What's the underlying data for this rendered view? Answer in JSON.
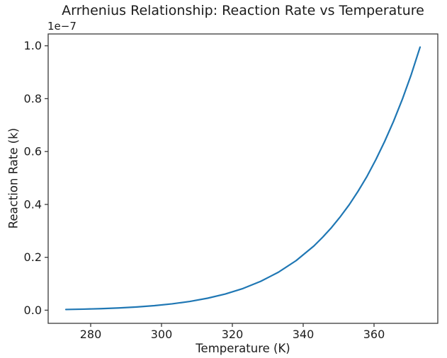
{
  "chart_data": {
    "type": "line",
    "title": "Arrhenius Relationship: Reaction Rate vs Temperature",
    "xlabel": "Temperature (K)",
    "ylabel": "Reaction Rate (k)",
    "y_offset_label": "1e−7",
    "line_color": "#1f77b4",
    "axis_color": "#3a3a3a",
    "grid": false,
    "legend": false,
    "xlim": [
      268,
      378
    ],
    "ylim_1e7": [
      -0.0497,
      1.0447
    ],
    "x_ticks": [
      280,
      300,
      320,
      340,
      360
    ],
    "x_tick_labels": [
      "280",
      "300",
      "320",
      "340",
      "360"
    ],
    "y_ticks_1e7": [
      0.0,
      0.2,
      0.4,
      0.6,
      0.8,
      1.0
    ],
    "y_tick_labels": [
      "0.0",
      "0.2",
      "0.4",
      "0.6",
      "0.8",
      "1.0"
    ],
    "series": [
      {
        "name": "reaction-rate-curve",
        "x": [
          273,
          278,
          283,
          288,
          293,
          298,
          303,
          308,
          313,
          318,
          323,
          328,
          333,
          338,
          343,
          345.5,
          348,
          350.5,
          353,
          355.5,
          358,
          360.5,
          363,
          365.5,
          368,
          370.5,
          373
        ],
        "y_1e7": [
          0.0027,
          0.004,
          0.0059,
          0.0085,
          0.0122,
          0.0172,
          0.024,
          0.0331,
          0.0453,
          0.0612,
          0.082,
          0.1091,
          0.1436,
          0.1874,
          0.2427,
          0.276,
          0.3126,
          0.354,
          0.399,
          0.45,
          0.5058,
          0.569,
          0.6383,
          0.714,
          0.798,
          0.891,
          0.995
        ]
      }
    ]
  }
}
